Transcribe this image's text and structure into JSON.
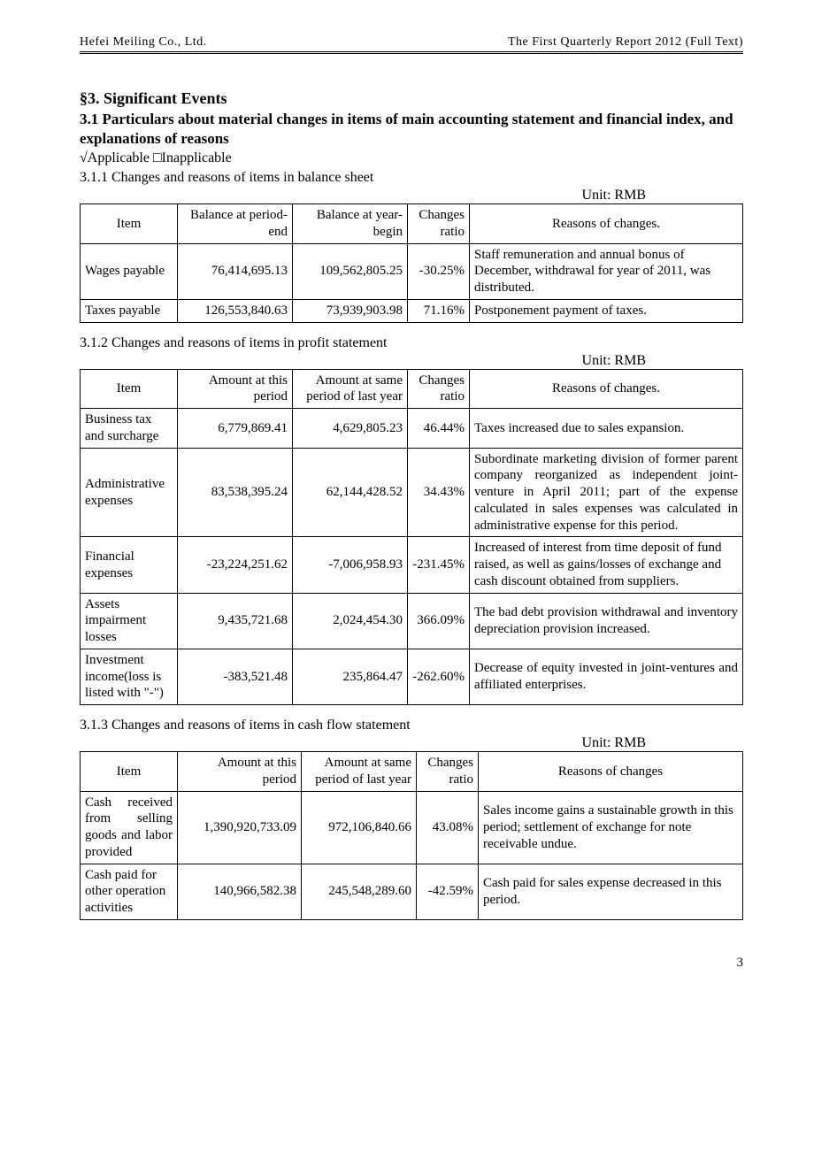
{
  "header": {
    "left": "Hefei  Meiling  Co.,  Ltd.",
    "right": "The  First  Quarterly  Report  2012  (Full  Text)"
  },
  "section_title": "§3. Significant Events",
  "subsection_title": "3.1 Particulars about material changes in items of main accounting statement and financial index, and explanations of reasons",
  "applicability": "√Applicable            □Inapplicable",
  "unit_label": "Unit: RMB",
  "page_number": "3",
  "t1": {
    "caption": "3.1.1 Changes and reasons of items in balance sheet",
    "headers": [
      "Item",
      "Balance at period-end",
      "Balance at year-begin",
      "Changes ratio",
      "Reasons of changes."
    ],
    "rows": [
      {
        "item": "Wages payable",
        "a": "76,414,695.13",
        "b": "109,562,805.25",
        "r": "-30.25%",
        "reason": "Staff remuneration and annual bonus of December, withdrawal for year of 2011, was distributed."
      },
      {
        "item": "Taxes payable",
        "a": "126,553,840.63",
        "b": "73,939,903.98",
        "r": "71.16%",
        "reason": "Postponement payment of taxes."
      }
    ]
  },
  "t2": {
    "caption": "3.1.2 Changes and reasons of items in profit statement",
    "headers": [
      "Item",
      "Amount at this period",
      "Amount at same period of last year",
      "Changes ratio",
      "Reasons of changes."
    ],
    "rows": [
      {
        "item": "Business tax and surcharge",
        "a": "6,779,869.41",
        "b": "4,629,805.23",
        "r": "46.44%",
        "reason": "Taxes increased due to sales expansion.",
        "justify": false
      },
      {
        "item": "Administrative expenses",
        "a": "83,538,395.24",
        "b": "62,144,428.52",
        "r": "34.43%",
        "reason": "Subordinate marketing division of former parent company reorganized as independent joint-venture in April 2011; part of the expense calculated in sales expenses was calculated in administrative expense for this period.",
        "justify": true
      },
      {
        "item": "Financial expenses",
        "a": "-23,224,251.62",
        "b": "-7,006,958.93",
        "r": "-231.45%",
        "reason": "Increased of interest from time deposit of fund raised, as well as gains/losses of exchange and cash discount obtained from suppliers.",
        "justify": false
      },
      {
        "item": "Assets impairment losses",
        "a": "9,435,721.68",
        "b": "2,024,454.30",
        "r": "366.09%",
        "reason": "The bad debt provision withdrawal and inventory depreciation provision increased.",
        "justify": true
      },
      {
        "item": "Investment income(loss is listed with \"-\")",
        "a": "-383,521.48",
        "b": "235,864.47",
        "r": "-262.60%",
        "reason": "Decrease of equity invested in joint-ventures and affiliated enterprises.",
        "justify": true
      }
    ]
  },
  "t3": {
    "caption": "3.1.3 Changes and reasons of items in cash flow statement",
    "headers": [
      "Item",
      "Amount at this period",
      "Amount at same period of last year",
      "Changes ratio",
      "Reasons of changes"
    ],
    "rows": [
      {
        "item": "Cash received from selling goods and labor provided",
        "a": "1,390,920,733.09",
        "b": "972,106,840.66",
        "r": "43.08%",
        "reason": "Sales income gains a sustainable growth in this period; settlement of exchange for note receivable undue.",
        "itemjustify": true
      },
      {
        "item": "Cash paid for other operation activities",
        "a": "140,966,582.38",
        "b": "245,548,289.60",
        "r": "-42.59%",
        "reason": "Cash paid for sales expense decreased in this period.",
        "itemjustify": false
      }
    ]
  }
}
